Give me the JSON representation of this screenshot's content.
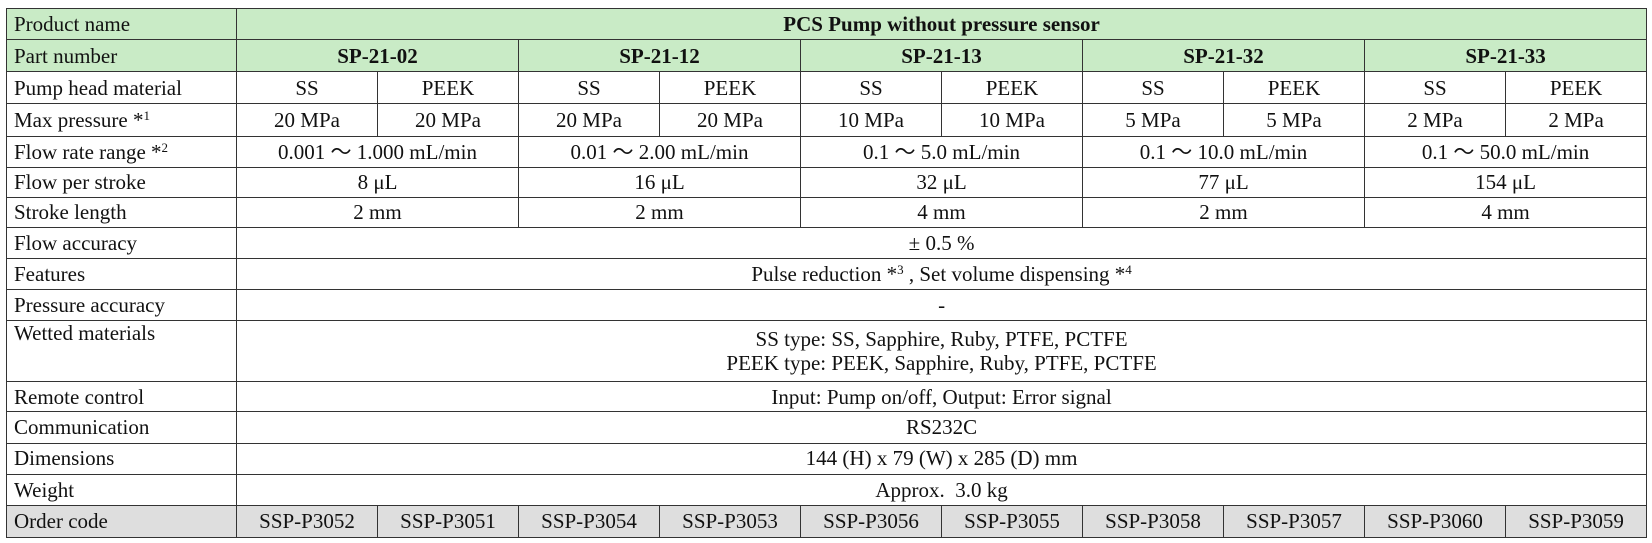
{
  "product_row": {
    "label": "Product name",
    "value": "PCS Pump without pressure sensor"
  },
  "part_row": {
    "label": "Part number",
    "models": [
      "SP-21-02",
      "SP-21-12",
      "SP-21-13",
      "SP-21-32",
      "SP-21-33"
    ]
  },
  "head_row": {
    "label": "Pump head material",
    "values": [
      "SS",
      "PEEK",
      "SS",
      "PEEK",
      "SS",
      "PEEK",
      "SS",
      "PEEK",
      "SS",
      "PEEK"
    ]
  },
  "pressure_row": {
    "label": "Max pressure *",
    "note": "1",
    "values": [
      "20 MPa",
      "20 MPa",
      "20 MPa",
      "20 MPa",
      "10 MPa",
      "10 MPa",
      "5 MPa",
      "5 MPa",
      "2 MPa",
      "2 MPa"
    ]
  },
  "flow_range_row": {
    "label": "Flow rate range *",
    "note": "2",
    "values": [
      "0.001 〜 1.000 mL/min",
      "0.01 〜 2.00 mL/min",
      "0.1 〜 5.0 mL/min",
      "0.1 〜 10.0 mL/min",
      "0.1 〜 50.0 mL/min"
    ]
  },
  "stroke_flow_row": {
    "label": "Flow per stroke",
    "values": [
      "8 μL",
      "16 μL",
      "32 μL",
      "77 μL",
      "154 μL"
    ]
  },
  "stroke_len_row": {
    "label": "Stroke length",
    "values": [
      "2 mm",
      "2 mm",
      "4 mm",
      "2 mm",
      "4 mm"
    ]
  },
  "accuracy_row": {
    "label": "Flow accuracy",
    "value": "± 0.5 %"
  },
  "features_row": {
    "label": "Features",
    "part1": "Pulse reduction *",
    "note1": "3",
    "part2": " , Set volume dispensing *",
    "note2": "4"
  },
  "pressure_acc_row": {
    "label": "Pressure accuracy",
    "value": "-"
  },
  "wetted_row": {
    "label": "Wetted materials",
    "line1": "SS type: SS, Sapphire, Ruby, PTFE, PCTFE",
    "line2": "PEEK type: PEEK, Sapphire, Ruby, PTFE, PCTFE"
  },
  "remote_row": {
    "label": "Remote control",
    "value": "Input: Pump on/off, Output: Error signal"
  },
  "comm_row": {
    "label": "Communication",
    "value": "RS232C"
  },
  "dim_row": {
    "label": "Dimensions",
    "value": "144 (H) x 79 (W) x 285 (D) mm"
  },
  "weight_row": {
    "label": "Weight",
    "value": "Approx.  3.0 kg"
  },
  "order_row": {
    "label": "Order code",
    "values": [
      "SSP-P3052",
      "SSP-P3051",
      "SSP-P3054",
      "SSP-P3053",
      "SSP-P3056",
      "SSP-P3055",
      "SSP-P3058",
      "SSP-P3057",
      "SSP-P3060",
      "SSP-P3059"
    ]
  }
}
